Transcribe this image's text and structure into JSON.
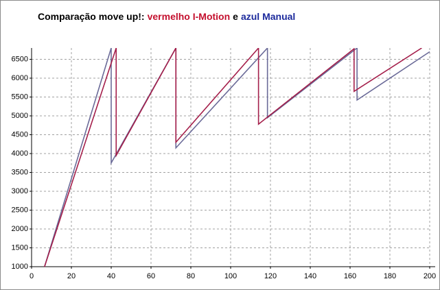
{
  "chart_data": {
    "type": "line",
    "title_parts": [
      {
        "text": "Comparação move up!:",
        "color": "#000000"
      },
      {
        "text": "vermelho I-Motion",
        "color": "#c4102e"
      },
      {
        "text": "e",
        "color": "#000000"
      },
      {
        "text": "azul Manual",
        "color": "#1c2a9c"
      }
    ],
    "xlim": [
      0,
      200
    ],
    "xticks": [
      0,
      20,
      40,
      60,
      80,
      100,
      120,
      140,
      160,
      180,
      200
    ],
    "ylim": [
      1000,
      6800
    ],
    "yticks": [
      1000,
      1500,
      2000,
      2500,
      3000,
      3500,
      4000,
      4500,
      5000,
      5500,
      6000,
      6500
    ],
    "grid": true,
    "series": [
      {
        "color": "#6a6a98",
        "x": [
          6.5,
          40,
          40,
          72.5,
          72.5,
          118.5,
          118.5,
          163.5,
          163.5,
          200
        ],
        "values": [
          1000,
          6800,
          3750,
          6800,
          4150,
          6800,
          4950,
          6800,
          5420,
          6700
        ]
      },
      {
        "color": "#a41e4a",
        "x": [
          6.5,
          42.5,
          42.5,
          72.5,
          72.5,
          114,
          114,
          162,
          162,
          196
        ],
        "values": [
          1000,
          6800,
          3950,
          6800,
          4300,
          6800,
          4780,
          6780,
          5650,
          6800
        ]
      }
    ]
  }
}
